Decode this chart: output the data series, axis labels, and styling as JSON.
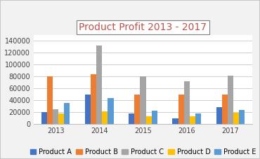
{
  "title": "Product Profit 2013 - 2017",
  "years": [
    2013,
    2014,
    2015,
    2016,
    2017
  ],
  "products": [
    "Product A",
    "Product B",
    "Product C",
    "Product D",
    "Product E"
  ],
  "values": {
    "Product A": [
      20000,
      50000,
      18000,
      10000,
      28000
    ],
    "Product B": [
      80000,
      84000,
      50000,
      50000,
      50000
    ],
    "Product C": [
      25000,
      132000,
      80000,
      72000,
      82000
    ],
    "Product D": [
      18000,
      21000,
      13000,
      13000,
      19000
    ],
    "Product E": [
      36000,
      44000,
      22000,
      18000,
      24000
    ]
  },
  "colors": {
    "Product A": "#4472C4",
    "Product B": "#ED7D31",
    "Product C": "#A5A5A5",
    "Product D": "#FFC000",
    "Product E": "#5B9BD5"
  },
  "ylim": [
    0,
    150000
  ],
  "yticks": [
    0,
    20000,
    40000,
    60000,
    80000,
    100000,
    120000,
    140000
  ],
  "background_color": "#F2F2F2",
  "plot_bg_color": "#FFFFFF",
  "grid_color": "#C8C8C8",
  "outer_border_color": "#BFBFBF",
  "title_fontsize": 10,
  "tick_fontsize": 7,
  "legend_fontsize": 7,
  "bar_width": 0.13,
  "group_width": 1.0
}
